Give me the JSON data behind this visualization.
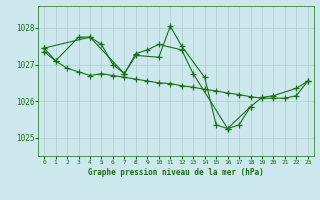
{
  "background_color": "#cce8ec",
  "grid_color": "#aacccc",
  "line_color": "#1a6e1a",
  "title": "Graphe pression niveau de la mer (hPa)",
  "ylabel_ticks": [
    1025,
    1026,
    1027,
    1028
  ],
  "xlim": [
    -0.5,
    23.5
  ],
  "ylim": [
    1024.5,
    1028.6
  ],
  "series": [
    {
      "x": [
        0,
        1,
        3,
        4,
        5,
        6,
        7,
        8,
        10,
        11,
        12,
        14,
        15,
        16,
        17,
        18
      ],
      "y": [
        1027.45,
        1027.1,
        1027.75,
        1027.75,
        1027.55,
        1027.0,
        1026.75,
        1027.25,
        1027.2,
        1028.05,
        1027.5,
        1026.65,
        1025.35,
        1025.25,
        1025.35,
        1025.85
      ]
    },
    {
      "x": [
        0,
        4,
        7,
        8,
        9,
        10,
        12,
        13,
        16,
        18,
        19,
        20,
        22,
        23
      ],
      "y": [
        1027.45,
        1027.75,
        1026.75,
        1027.3,
        1027.4,
        1027.55,
        1027.4,
        1026.75,
        1025.25,
        1025.85,
        1026.1,
        1026.15,
        1026.35,
        1026.55
      ]
    },
    {
      "x": [
        0,
        1,
        2,
        3,
        4,
        5,
        6,
        7,
        8,
        9,
        10,
        11,
        12,
        13,
        14,
        15,
        16,
        17,
        18,
        19,
        20,
        21,
        22,
        23
      ],
      "y": [
        1027.35,
        1027.1,
        1026.9,
        1026.8,
        1026.7,
        1026.75,
        1026.7,
        1026.65,
        1026.6,
        1026.55,
        1026.5,
        1026.48,
        1026.42,
        1026.38,
        1026.32,
        1026.28,
        1026.22,
        1026.18,
        1026.12,
        1026.08,
        1026.08,
        1026.08,
        1026.15,
        1026.55
      ]
    }
  ]
}
